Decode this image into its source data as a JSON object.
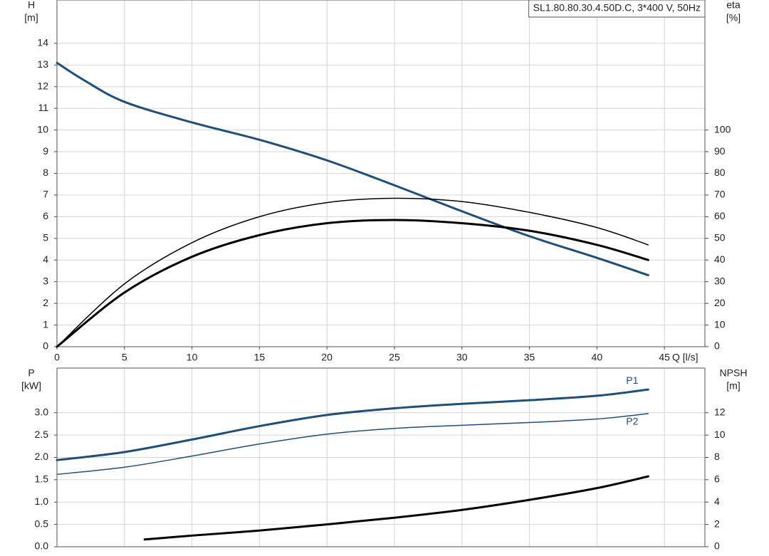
{
  "chart_data": [
    {
      "type": "line",
      "title": "SL1.80.80.30.4.50D.C, 3*400 V, 50Hz",
      "x_label": "Q [l/s]",
      "y_label": "H",
      "y_unit": "[m]",
      "y2_label": "eta",
      "y2_unit": "[%]",
      "xlim": [
        0,
        48
      ],
      "xticks": [
        0,
        5,
        10,
        15,
        20,
        25,
        30,
        35,
        40,
        45
      ],
      "ylim": [
        0,
        16
      ],
      "yticks": [
        0,
        1,
        2,
        3,
        4,
        5,
        6,
        7,
        8,
        9,
        10,
        11,
        12,
        13,
        14
      ],
      "y2lim": [
        0,
        160
      ],
      "y2ticks": [
        0,
        10,
        20,
        30,
        40,
        50,
        60,
        70,
        80,
        90,
        100
      ],
      "grid": true,
      "series": [
        {
          "color": "#1d4f7c",
          "width": 3,
          "x": [
            0,
            2,
            5,
            10,
            15,
            20,
            25,
            30,
            35,
            40,
            43.8
          ],
          "values": [
            13.1,
            12.3,
            11.3,
            10.35,
            9.55,
            8.6,
            7.45,
            6.25,
            5.1,
            4.1,
            3.3
          ]
        },
        {
          "color": "#000000",
          "width": 1.5,
          "axis": "y2",
          "x": [
            0,
            5,
            10,
            15,
            20,
            25,
            30,
            35,
            40,
            43.8
          ],
          "values": [
            0,
            29,
            48,
            60,
            66.5,
            68.5,
            67,
            62,
            55,
            47
          ]
        },
        {
          "color": "#000000",
          "width": 3,
          "axis": "y2",
          "x": [
            0,
            5,
            10,
            15,
            20,
            25,
            30,
            35,
            40,
            43.8
          ],
          "values": [
            0,
            25,
            41.5,
            51.5,
            57,
            58.5,
            57,
            53.5,
            47,
            40
          ]
        }
      ]
    },
    {
      "type": "line",
      "y_label": "P",
      "y_unit": "[kW]",
      "y2_label": "NPSH",
      "y2_unit": "[m]",
      "xlim": [
        0,
        48
      ],
      "ylim": [
        0,
        4
      ],
      "yticks": [
        {
          "value": 0,
          "label": "0.0"
        },
        0.5,
        {
          "value": 1,
          "label": "1.0"
        },
        1.5,
        {
          "value": 2,
          "label": "2.0"
        },
        2.5,
        {
          "value": 3,
          "label": "3.0"
        }
      ],
      "y2lim": [
        0,
        16
      ],
      "y2ticks": [
        0,
        2,
        4,
        6,
        8,
        10,
        12
      ],
      "grid": true,
      "series": [
        {
          "name": "P1",
          "color": "#1d4f7c",
          "width": 3,
          "x": [
            0,
            5,
            10,
            15,
            20,
            25,
            30,
            35,
            40,
            43.8
          ],
          "values": [
            1.94,
            2.12,
            2.4,
            2.7,
            2.95,
            3.1,
            3.2,
            3.28,
            3.38,
            3.52
          ]
        },
        {
          "name": "P2",
          "color": "#1d4f7c",
          "width": 1.5,
          "x": [
            0,
            5,
            10,
            15,
            20,
            25,
            30,
            35,
            40,
            43.8
          ],
          "values": [
            1.62,
            1.78,
            2.03,
            2.3,
            2.52,
            2.65,
            2.72,
            2.78,
            2.86,
            2.98
          ]
        },
        {
          "color": "#000000",
          "width": 3,
          "axis": "y2",
          "x": [
            6.5,
            10,
            15,
            20,
            25,
            30,
            35,
            40,
            43.8
          ],
          "values": [
            0.65,
            1.0,
            1.45,
            2.0,
            2.6,
            3.3,
            4.2,
            5.25,
            6.3
          ]
        }
      ]
    }
  ]
}
